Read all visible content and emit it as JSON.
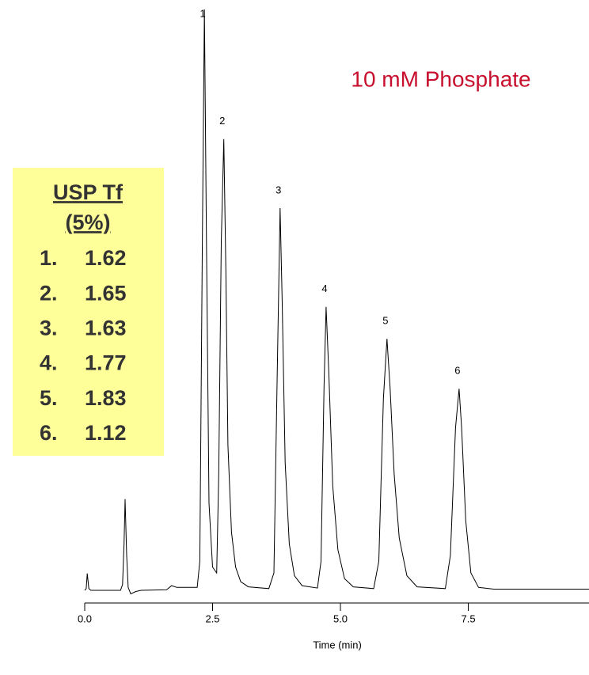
{
  "chart_data": {
    "type": "line",
    "title": "10 mM Phosphate",
    "xlabel": "Time (min)",
    "xlim": [
      0,
      9.86
    ],
    "xticks": [
      {
        "value": 0,
        "label": "0.0"
      },
      {
        "value": 2.5,
        "label": "2.5"
      },
      {
        "value": 5,
        "label": "5.0"
      },
      {
        "value": 7.5,
        "label": "7.5"
      }
    ],
    "ylim": [
      0,
      100
    ],
    "color": "#000000",
    "x": [
      0,
      0.03,
      0.05,
      0.08,
      0.12,
      0.7,
      0.74,
      0.77,
      0.79,
      0.82,
      0.85,
      0.9,
      1.0,
      1.1,
      1.6,
      1.7,
      1.8,
      2.2,
      2.25,
      2.3,
      2.34,
      2.38,
      2.43,
      2.5,
      2.58,
      2.62,
      2.67,
      2.72,
      2.76,
      2.8,
      2.87,
      2.95,
      3.05,
      3.2,
      3.6,
      3.7,
      3.76,
      3.82,
      3.86,
      3.92,
      4.0,
      4.1,
      4.25,
      4.55,
      4.62,
      4.68,
      4.72,
      4.77,
      4.85,
      4.95,
      5.08,
      5.25,
      5.65,
      5.75,
      5.84,
      5.91,
      5.97,
      6.05,
      6.15,
      6.3,
      6.5,
      7.05,
      7.15,
      7.25,
      7.32,
      7.37,
      7.45,
      7.55,
      7.7,
      8.0,
      9.86
    ],
    "values": [
      0,
      0.3,
      2.9,
      0.3,
      0,
      0,
      1,
      8,
      15.7,
      6,
      0.5,
      -0.6,
      -0.2,
      0,
      0.1,
      0.8,
      0.5,
      0.5,
      5,
      60,
      100,
      60,
      15,
      4,
      3,
      20,
      60,
      77.7,
      55,
      25,
      10,
      4,
      1.5,
      0.6,
      0.3,
      3,
      35,
      65.8,
      50,
      22,
      8,
      2.5,
      0.8,
      0.4,
      5,
      35,
      48.8,
      38,
      18,
      7,
      2,
      0.6,
      0.3,
      5,
      33,
      43.3,
      35,
      20,
      9,
      2.5,
      0.6,
      0.3,
      6,
      28,
      34.7,
      28,
      12,
      3,
      0.5,
      0.2,
      0.2
    ],
    "annotations": [
      {
        "text": "1",
        "x": 2.34,
        "y": 100
      },
      {
        "text": "2",
        "x": 2.72,
        "y": 77.7
      },
      {
        "text": "3",
        "x": 3.82,
        "y": 65.8
      },
      {
        "text": "4",
        "x": 4.72,
        "y": 48.8
      },
      {
        "text": "5",
        "x": 5.91,
        "y": 43.3
      },
      {
        "text": "6",
        "x": 7.32,
        "y": 34.7
      }
    ],
    "usp_box": {
      "title": "USP Tf",
      "subtitle": "(5%)",
      "rows": [
        {
          "label": "1.",
          "value": 1.62
        },
        {
          "label": "2.",
          "value": 1.65
        },
        {
          "label": "3.",
          "value": 1.63
        },
        {
          "label": "4.",
          "value": 1.77
        },
        {
          "label": "5.",
          "value": 1.83
        },
        {
          "label": "6.",
          "value": 1.12
        }
      ]
    }
  }
}
